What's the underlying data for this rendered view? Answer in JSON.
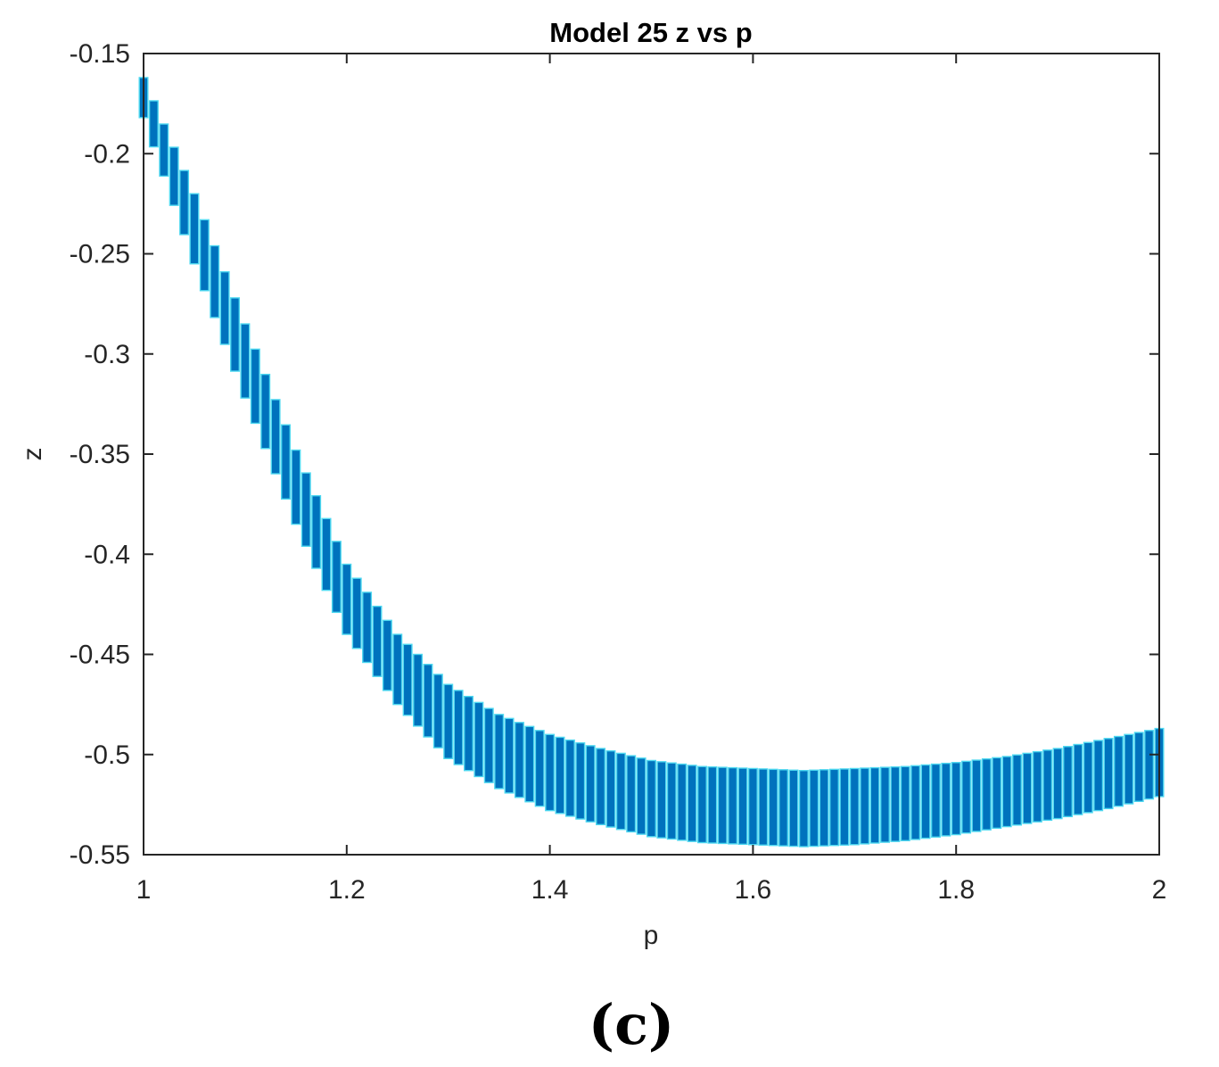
{
  "panel_label": "(c)",
  "chart_data": {
    "type": "errorbar",
    "title": "Model 25 z vs p",
    "xlabel": "p",
    "ylabel": "z",
    "xlim": [
      1,
      2
    ],
    "ylim": [
      -0.55,
      -0.15
    ],
    "xticks": [
      1,
      1.2,
      1.4,
      1.6,
      1.8,
      2
    ],
    "xtick_labels": [
      "1",
      "1.2",
      "1.4",
      "1.6",
      "1.8",
      "2"
    ],
    "yticks": [
      -0.15,
      -0.2,
      -0.25,
      -0.3,
      -0.35,
      -0.4,
      -0.45,
      -0.5,
      -0.55
    ],
    "ytick_labels": [
      "-0.15",
      "-0.2",
      "-0.25",
      "-0.3",
      "-0.35",
      "-0.4",
      "-0.45",
      "-0.5",
      "-0.55"
    ],
    "grid": false,
    "bar_color": "#0072BD",
    "edge_color": "#4DD8F0",
    "series": {
      "x": [
        1.0,
        1.05,
        1.1,
        1.15,
        1.2,
        1.25,
        1.3,
        1.35,
        1.4,
        1.45,
        1.5,
        1.55,
        1.6,
        1.65,
        1.7,
        1.75,
        1.8,
        1.85,
        1.9,
        1.95,
        2.0
      ],
      "upper": [
        -0.162,
        -0.22,
        -0.285,
        -0.348,
        -0.405,
        -0.44,
        -0.465,
        -0.48,
        -0.49,
        -0.497,
        -0.503,
        -0.506,
        -0.507,
        -0.508,
        -0.507,
        -0.506,
        -0.504,
        -0.501,
        -0.497,
        -0.492,
        -0.487
      ],
      "lower": [
        -0.182,
        -0.255,
        -0.322,
        -0.385,
        -0.44,
        -0.475,
        -0.502,
        -0.517,
        -0.528,
        -0.535,
        -0.541,
        -0.544,
        -0.545,
        -0.546,
        -0.545,
        -0.543,
        -0.54,
        -0.536,
        -0.532,
        -0.527,
        -0.521
      ]
    }
  }
}
